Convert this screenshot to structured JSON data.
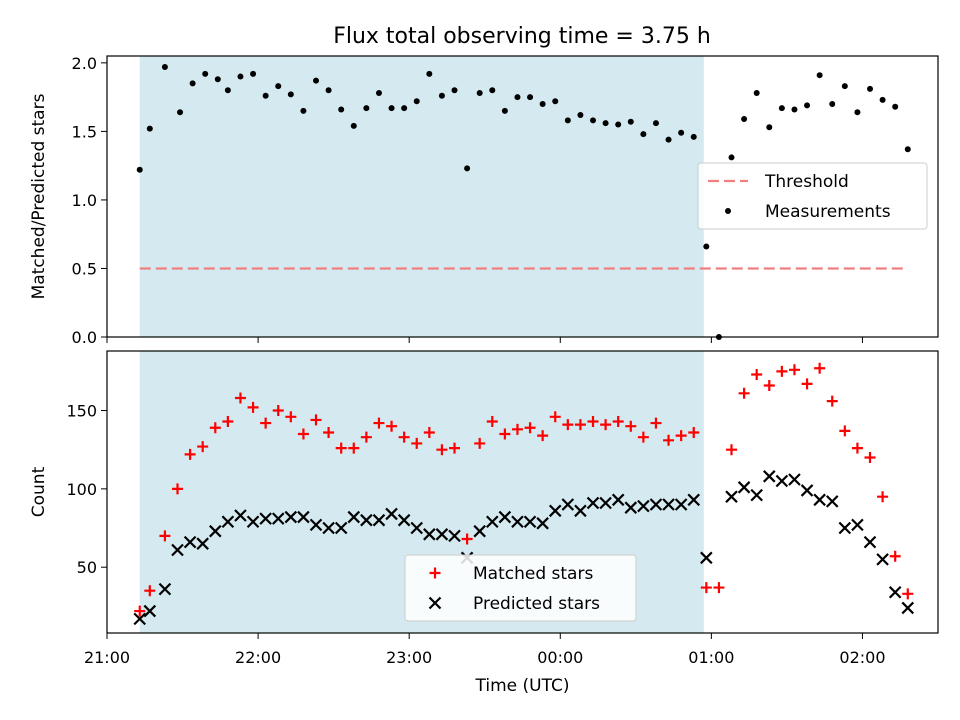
{
  "figure": {
    "title": "Flux total observing time = 3.75 h"
  },
  "chart_data": [
    {
      "type": "scatter",
      "ylabel": "Matched/Predicted stars",
      "xlim": [
        "21:00",
        "02:30"
      ],
      "ylim": [
        0,
        2.05
      ],
      "yticks": [
        "0.0",
        "0.5",
        "1.0",
        "1.5",
        "2.0"
      ],
      "shaded_interval": [
        "21:13",
        "00:57"
      ],
      "shade_color": "#d4eaf0",
      "legend_position": "center-right",
      "threshold": {
        "name": "Threshold",
        "y": 0.5,
        "x": [
          "21:13",
          "02:18"
        ],
        "color": "#f08080"
      },
      "series": [
        {
          "name": "Measurements",
          "color": "#000000",
          "points": [
            [
              "21:13",
              1.22
            ],
            [
              "21:17",
              1.52
            ],
            [
              "21:23",
              1.97
            ],
            [
              "21:29",
              1.64
            ],
            [
              "21:34",
              1.85
            ],
            [
              "21:39",
              1.92
            ],
            [
              "21:44",
              1.88
            ],
            [
              "21:48",
              1.8
            ],
            [
              "21:53",
              1.9
            ],
            [
              "21:58",
              1.92
            ],
            [
              "22:03",
              1.76
            ],
            [
              "22:08",
              1.83
            ],
            [
              "22:13",
              1.77
            ],
            [
              "22:18",
              1.65
            ],
            [
              "22:23",
              1.87
            ],
            [
              "22:28",
              1.8
            ],
            [
              "22:33",
              1.66
            ],
            [
              "22:38",
              1.54
            ],
            [
              "22:43",
              1.67
            ],
            [
              "22:48",
              1.78
            ],
            [
              "22:53",
              1.67
            ],
            [
              "22:58",
              1.67
            ],
            [
              "23:03",
              1.72
            ],
            [
              "23:08",
              1.92
            ],
            [
              "23:13",
              1.76
            ],
            [
              "23:18",
              1.8
            ],
            [
              "23:23",
              1.23
            ],
            [
              "23:28",
              1.78
            ],
            [
              "23:33",
              1.8
            ],
            [
              "23:38",
              1.65
            ],
            [
              "23:43",
              1.75
            ],
            [
              "23:48",
              1.75
            ],
            [
              "23:53",
              1.7
            ],
            [
              "23:58",
              1.72
            ],
            [
              "00:03",
              1.58
            ],
            [
              "00:08",
              1.62
            ],
            [
              "00:13",
              1.58
            ],
            [
              "00:18",
              1.56
            ],
            [
              "00:23",
              1.55
            ],
            [
              "00:28",
              1.57
            ],
            [
              "00:33",
              1.48
            ],
            [
              "00:38",
              1.56
            ],
            [
              "00:43",
              1.44
            ],
            [
              "00:48",
              1.49
            ],
            [
              "00:53",
              1.46
            ],
            [
              "00:58",
              0.66
            ],
            [
              "01:03",
              0.0
            ],
            [
              "01:08",
              1.31
            ],
            [
              "01:13",
              1.59
            ],
            [
              "01:18",
              1.78
            ],
            [
              "01:23",
              1.53
            ],
            [
              "01:28",
              1.67
            ],
            [
              "01:33",
              1.66
            ],
            [
              "01:38",
              1.69
            ],
            [
              "01:43",
              1.91
            ],
            [
              "01:48",
              1.7
            ],
            [
              "01:53",
              1.83
            ],
            [
              "01:58",
              1.64
            ],
            [
              "02:03",
              1.81
            ],
            [
              "02:08",
              1.73
            ],
            [
              "02:13",
              1.68
            ],
            [
              "02:18",
              1.37
            ]
          ]
        }
      ]
    },
    {
      "type": "scatter",
      "xlabel": "Time (UTC)",
      "ylabel": "Count",
      "xlim": [
        "21:00",
        "02:30"
      ],
      "ylim": [
        8,
        188
      ],
      "xticks": [
        "21:00",
        "22:00",
        "23:00",
        "00:00",
        "01:00",
        "02:00"
      ],
      "yticks": [
        "50",
        "100",
        "150"
      ],
      "shaded_interval": [
        "21:13",
        "00:57"
      ],
      "shade_color": "#d4eaf0",
      "legend_position": "lower-center",
      "series": [
        {
          "name": "Matched stars",
          "marker": "plus",
          "color": "#ff0000",
          "points": [
            [
              "21:13",
              22
            ],
            [
              "21:17",
              35
            ],
            [
              "21:23",
              70
            ],
            [
              "21:28",
              100
            ],
            [
              "21:33",
              122
            ],
            [
              "21:38",
              127
            ],
            [
              "21:43",
              139
            ],
            [
              "21:48",
              143
            ],
            [
              "21:53",
              158
            ],
            [
              "21:58",
              152
            ],
            [
              "22:03",
              142
            ],
            [
              "22:08",
              150
            ],
            [
              "22:13",
              146
            ],
            [
              "22:18",
              135
            ],
            [
              "22:23",
              144
            ],
            [
              "22:28",
              136
            ],
            [
              "22:33",
              126
            ],
            [
              "22:38",
              126
            ],
            [
              "22:43",
              133
            ],
            [
              "22:48",
              142
            ],
            [
              "22:53",
              140
            ],
            [
              "22:58",
              133
            ],
            [
              "23:03",
              129
            ],
            [
              "23:08",
              136
            ],
            [
              "23:13",
              125
            ],
            [
              "23:18",
              126
            ],
            [
              "23:23",
              68
            ],
            [
              "23:28",
              129
            ],
            [
              "23:33",
              143
            ],
            [
              "23:38",
              135
            ],
            [
              "23:43",
              138
            ],
            [
              "23:48",
              139
            ],
            [
              "23:53",
              134
            ],
            [
              "23:58",
              146
            ],
            [
              "00:03",
              141
            ],
            [
              "00:08",
              141
            ],
            [
              "00:13",
              143
            ],
            [
              "00:18",
              141
            ],
            [
              "00:23",
              143
            ],
            [
              "00:28",
              140
            ],
            [
              "00:33",
              133
            ],
            [
              "00:38",
              142
            ],
            [
              "00:43",
              131
            ],
            [
              "00:48",
              134
            ],
            [
              "00:53",
              136
            ],
            [
              "00:58",
              37
            ],
            [
              "01:03",
              37
            ],
            [
              "01:08",
              125
            ],
            [
              "01:13",
              161
            ],
            [
              "01:18",
              173
            ],
            [
              "01:23",
              166
            ],
            [
              "01:28",
              175
            ],
            [
              "01:33",
              176
            ],
            [
              "01:38",
              167
            ],
            [
              "01:43",
              177
            ],
            [
              "01:48",
              156
            ],
            [
              "01:53",
              137
            ],
            [
              "01:58",
              126
            ],
            [
              "02:03",
              120
            ],
            [
              "02:08",
              95
            ],
            [
              "02:13",
              57
            ],
            [
              "02:18",
              33
            ]
          ]
        },
        {
          "name": "Predicted stars",
          "marker": "x",
          "color": "#000000",
          "points": [
            [
              "21:13",
              17
            ],
            [
              "21:17",
              22
            ],
            [
              "21:23",
              36
            ],
            [
              "21:28",
              61
            ],
            [
              "21:33",
              66
            ],
            [
              "21:38",
              65
            ],
            [
              "21:43",
              73
            ],
            [
              "21:48",
              79
            ],
            [
              "21:53",
              83
            ],
            [
              "21:58",
              79
            ],
            [
              "22:03",
              81
            ],
            [
              "22:08",
              81
            ],
            [
              "22:13",
              82
            ],
            [
              "22:18",
              82
            ],
            [
              "22:23",
              77
            ],
            [
              "22:28",
              75
            ],
            [
              "22:33",
              75
            ],
            [
              "22:38",
              82
            ],
            [
              "22:43",
              80
            ],
            [
              "22:48",
              80
            ],
            [
              "22:53",
              84
            ],
            [
              "22:58",
              80
            ],
            [
              "23:03",
              75
            ],
            [
              "23:08",
              71
            ],
            [
              "23:13",
              71
            ],
            [
              "23:18",
              70
            ],
            [
              "23:23",
              56
            ],
            [
              "23:28",
              73
            ],
            [
              "23:33",
              79
            ],
            [
              "23:38",
              82
            ],
            [
              "23:43",
              79
            ],
            [
              "23:48",
              79
            ],
            [
              "23:53",
              78
            ],
            [
              "23:58",
              86
            ],
            [
              "00:03",
              90
            ],
            [
              "00:08",
              86
            ],
            [
              "00:13",
              91
            ],
            [
              "00:18",
              91
            ],
            [
              "00:23",
              93
            ],
            [
              "00:28",
              88
            ],
            [
              "00:33",
              89
            ],
            [
              "00:38",
              90
            ],
            [
              "00:43",
              90
            ],
            [
              "00:48",
              90
            ],
            [
              "00:53",
              93
            ],
            [
              "00:58",
              56
            ],
            [
              "01:08",
              95
            ],
            [
              "01:13",
              101
            ],
            [
              "01:18",
              96
            ],
            [
              "01:23",
              108
            ],
            [
              "01:28",
              105
            ],
            [
              "01:33",
              106
            ],
            [
              "01:38",
              99
            ],
            [
              "01:43",
              93
            ],
            [
              "01:48",
              92
            ],
            [
              "01:53",
              75
            ],
            [
              "01:58",
              77
            ],
            [
              "02:03",
              66
            ],
            [
              "02:08",
              55
            ],
            [
              "02:13",
              34
            ],
            [
              "02:18",
              24
            ]
          ]
        }
      ]
    }
  ]
}
